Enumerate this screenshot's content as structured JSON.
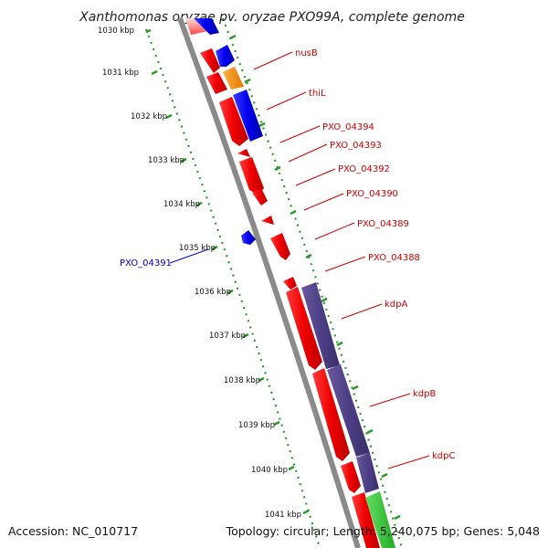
{
  "title": "Xanthomonas oryzae pv. oryzae PXO99A, complete genome",
  "accession": "Accession: NC_010717",
  "summary": "Topology: circular; Length: 5,240,075 bp; Genes: 5,048",
  "colors": {
    "backbone": "#8a8a8a",
    "scale_ticks": "#228b22",
    "label_red": "#cc0000",
    "label_blue": "#0000cc"
  },
  "scale": {
    "unit": "kbp",
    "labels": [
      "1030 kbp",
      "1031 kbp",
      "1032 kbp",
      "1033 kbp",
      "1034 kbp",
      "1035 kbp",
      "1036 kbp",
      "1037 kbp",
      "1038 kbp",
      "1039 kbp",
      "1040 kbp",
      "1041 kbp"
    ]
  },
  "gene_labels": [
    {
      "name": "nusB",
      "color": "#cc0000"
    },
    {
      "name": "thiL",
      "color": "#cc0000"
    },
    {
      "name": "PXO_04394",
      "color": "#cc0000"
    },
    {
      "name": "PXO_04393",
      "color": "#cc0000"
    },
    {
      "name": "PXO_04392",
      "color": "#cc0000"
    },
    {
      "name": "PXO_04390",
      "color": "#cc0000"
    },
    {
      "name": "PXO_04389",
      "color": "#cc0000"
    },
    {
      "name": "PXO_04388",
      "color": "#cc0000"
    },
    {
      "name": "kdpA",
      "color": "#cc0000"
    },
    {
      "name": "kdpB",
      "color": "#cc0000"
    },
    {
      "name": "kdpC",
      "color": "#cc0000"
    },
    {
      "name": "PXO_04391",
      "color": "#0000cc"
    }
  ]
}
